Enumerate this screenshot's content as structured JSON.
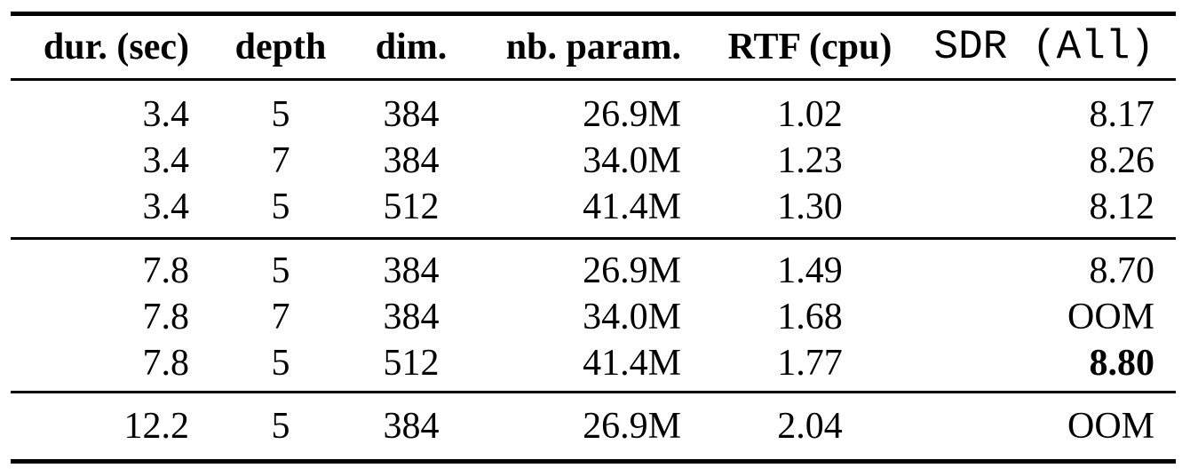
{
  "colors": {
    "background": "#ffffff",
    "text": "#000000",
    "rule": "#000000"
  },
  "table": {
    "columns": [
      {
        "label": "dur. (sec)"
      },
      {
        "label": "depth"
      },
      {
        "label": "dim."
      },
      {
        "label": "nb. param."
      },
      {
        "label": "RTF (cpu)"
      },
      {
        "label": "SDR (All)"
      }
    ],
    "groups": [
      {
        "rows": [
          {
            "cells": [
              "3.4",
              "5",
              "384",
              "26.9M",
              "1.02",
              "8.17"
            ]
          },
          {
            "cells": [
              "3.4",
              "7",
              "384",
              "34.0M",
              "1.23",
              "8.26"
            ]
          },
          {
            "cells": [
              "3.4",
              "5",
              "512",
              "41.4M",
              "1.30",
              "8.12"
            ]
          }
        ]
      },
      {
        "rows": [
          {
            "cells": [
              "7.8",
              "5",
              "384",
              "26.9M",
              "1.49",
              "8.70"
            ]
          },
          {
            "cells": [
              "7.8",
              "7",
              "384",
              "34.0M",
              "1.68",
              "OOM"
            ]
          },
          {
            "cells": [
              "7.8",
              "5",
              "512",
              "41.4M",
              "1.77",
              "8.80"
            ]
          }
        ]
      },
      {
        "rows": [
          {
            "cells": [
              "12.2",
              "5",
              "384",
              "26.9M",
              "2.04",
              "OOM"
            ]
          }
        ]
      }
    ]
  }
}
